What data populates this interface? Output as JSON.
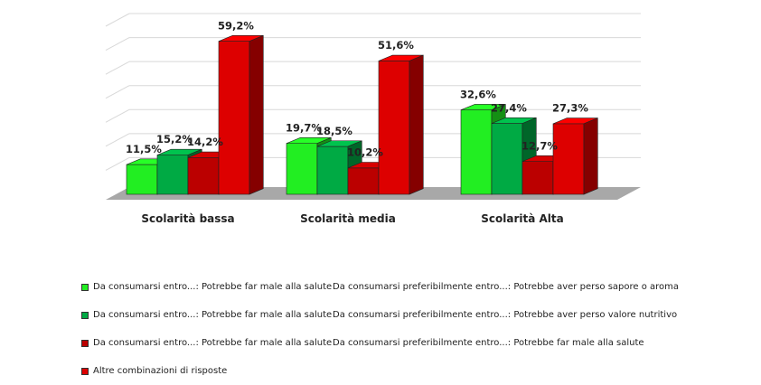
{
  "chart_data": {
    "type": "bar",
    "title": "",
    "xlabel": "",
    "ylabel": "",
    "ylim": [
      0,
      65
    ],
    "grid": true,
    "three_d": true,
    "legend_position": "bottom",
    "categories": [
      "Scolarità bassa",
      "Scolarità media",
      "Scolarità Alta"
    ],
    "series": [
      {
        "name": "Da consumarsi entro...: Potrebbe far male alla salute    Da consumarsi preferibilmente entro...: Potrebbe aver perso sapore o aroma",
        "legend_a": "Da consumarsi entro...: Potrebbe far male alla salute",
        "legend_b": "Da consumarsi preferibilmente entro...: Potrebbe aver perso sapore o aroma",
        "color": "#22ee22",
        "values": [
          11.5,
          19.7,
          32.6
        ],
        "labels": [
          "11,5%",
          "19,7%",
          "32,6%"
        ]
      },
      {
        "name": "Da consumarsi entro...: Potrebbe far male alla salute    Da consumarsi preferibilmente entro...: Potrebbe aver perso valore nutritivo",
        "legend_a": "Da consumarsi entro...: Potrebbe far male alla salute",
        "legend_b": "Da consumarsi preferibilmente entro...: Potrebbe aver perso valore nutritivo",
        "color": "#00aa44",
        "values": [
          15.2,
          18.5,
          27.4
        ],
        "labels": [
          "15,2%",
          "18,5%",
          "27,4%"
        ]
      },
      {
        "name": "Da consumarsi entro...: Potrebbe far male alla salute    Da consumarsi preferibilmente entro...: Potrebbe far male alla salute",
        "legend_a": "Da consumarsi entro...: Potrebbe far male alla salute",
        "legend_b": "Da consumarsi preferibilmente entro...: Potrebbe far male alla salute",
        "color": "#bb0000",
        "values": [
          14.2,
          10.2,
          12.7
        ],
        "labels": [
          "14,2%",
          "10,2%",
          "12,7%"
        ]
      },
      {
        "name": "Altre combinazioni di risposte",
        "legend_a": "Altre combinazioni di risposte",
        "legend_b": "",
        "color": "#dd0000",
        "values": [
          59.2,
          51.6,
          27.3
        ],
        "labels": [
          "59,2%",
          "51,6%",
          "27,3%"
        ]
      }
    ]
  }
}
